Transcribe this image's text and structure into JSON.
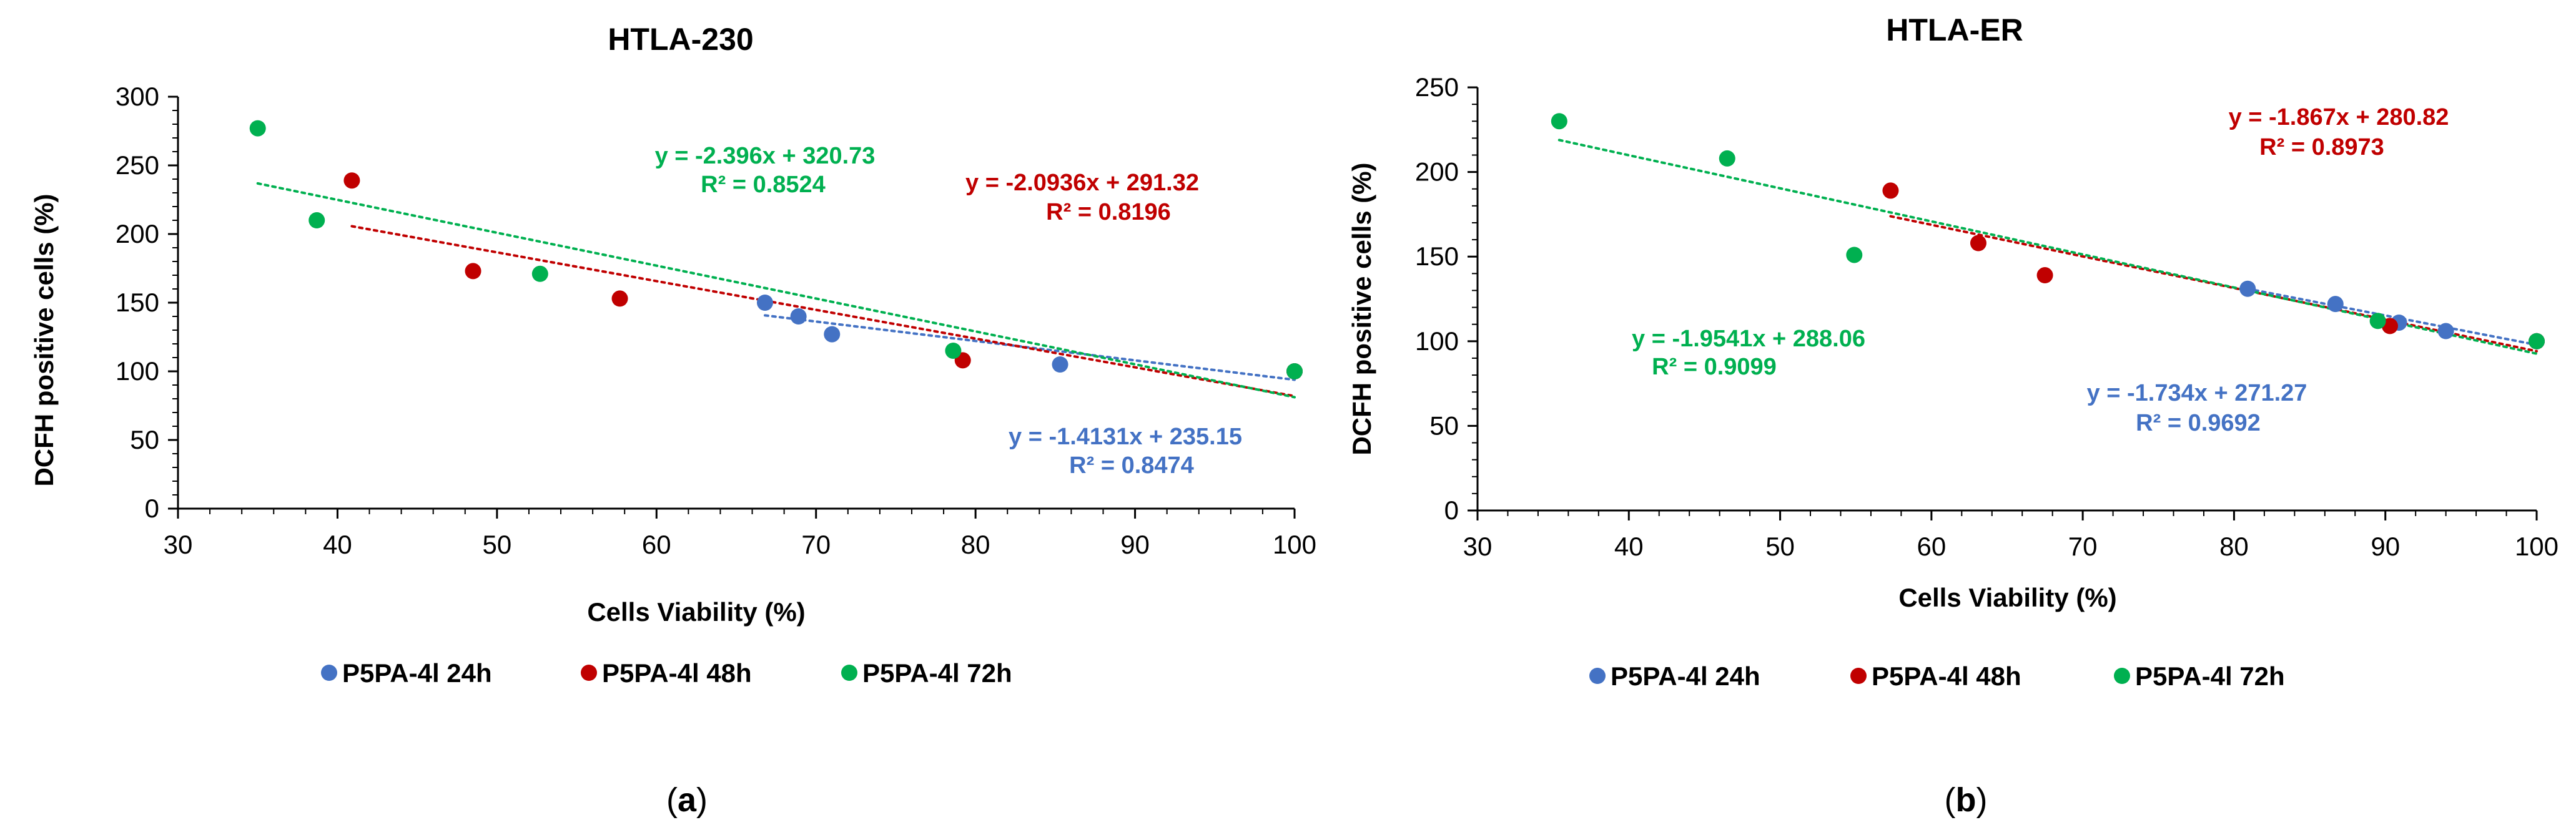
{
  "chart_data": [
    {
      "type": "scatter",
      "title": "HTLA-230",
      "caption_letter": "a",
      "xlabel": "Cells Viability  (%)",
      "ylabel": "DCFH positive cells (%)",
      "xlim": [
        30,
        100
      ],
      "ylim": [
        0,
        300
      ],
      "xticks": [
        "30",
        "40",
        "50",
        "60",
        "70",
        "80",
        "90",
        "100"
      ],
      "yticks": [
        "0",
        "50",
        "100",
        "150",
        "200",
        "250",
        "300"
      ],
      "series": [
        {
          "name": "P5PA-4l 24h",
          "color": "#4472C4",
          "points": [
            [
              66.8,
              150
            ],
            [
              68.9,
              140
            ],
            [
              71.0,
              127
            ],
            [
              85.3,
              105
            ],
            [
              100,
              100
            ]
          ],
          "trend": {
            "slope": -1.4131,
            "intercept": 235.15,
            "x": [
              66.8,
              100
            ]
          },
          "equation": "y = -1.4131x + 235.15",
          "r2": "R² = 0.8474"
        },
        {
          "name": "P5PA-4l 48h",
          "color": "#C00000",
          "points": [
            [
              40.9,
              239
            ],
            [
              48.5,
              173
            ],
            [
              57.7,
              153
            ],
            [
              79.2,
              108
            ],
            [
              100,
              100
            ]
          ],
          "trend": {
            "slope": -2.0936,
            "intercept": 291.32,
            "x": [
              40.9,
              100
            ]
          },
          "equation": "y = -2.0936x + 291.32",
          "r2": "R² = 0.8196"
        },
        {
          "name": "P5PA-4l 72h",
          "color": "#00B050",
          "points": [
            [
              35.0,
              277
            ],
            [
              38.7,
              210
            ],
            [
              52.7,
              171
            ],
            [
              78.6,
              115
            ],
            [
              100,
              100
            ]
          ],
          "trend": {
            "slope": -2.396,
            "intercept": 320.73,
            "x": [
              35.0,
              100
            ]
          },
          "equation": "y = -2.396x + 320.73",
          "r2": "R² = 0.8524"
        }
      ]
    },
    {
      "type": "scatter",
      "title": "HTLA-ER",
      "caption_letter": "b",
      "xlabel": "Cells Viability (%)",
      "ylabel": "DCFH positive cells (%)",
      "xlim": [
        30,
        100
      ],
      "ylim": [
        0,
        250
      ],
      "xticks": [
        "30",
        "40",
        "50",
        "60",
        "70",
        "80",
        "90",
        "100"
      ],
      "yticks": [
        "0",
        "50",
        "100",
        "150",
        "200",
        "250"
      ],
      "series": [
        {
          "name": "P5PA-4l 24h",
          "color": "#4472C4",
          "points": [
            [
              80.9,
              131
            ],
            [
              86.7,
              122
            ],
            [
              90.9,
              111
            ],
            [
              94.0,
              106
            ],
            [
              100,
              100
            ]
          ],
          "trend": {
            "slope": -1.734,
            "intercept": 271.27,
            "x": [
              80.9,
              100
            ]
          },
          "equation": "y = -1.734x + 271.27",
          "r2": "R² = 0.9692"
        },
        {
          "name": "P5PA-4l 48h",
          "color": "#C00000",
          "points": [
            [
              57.3,
              189
            ],
            [
              63.1,
              158
            ],
            [
              67.5,
              139
            ],
            [
              90.3,
              109
            ],
            [
              100,
              100
            ]
          ],
          "trend": {
            "slope": -1.867,
            "intercept": 280.82,
            "x": [
              57.3,
              100
            ]
          },
          "equation": "y = -1.867x + 280.82",
          "r2": "R² = 0.8973"
        },
        {
          "name": "P5PA-4l 72h",
          "color": "#00B050",
          "points": [
            [
              35.4,
              230
            ],
            [
              46.5,
              208
            ],
            [
              54.9,
              151
            ],
            [
              89.5,
              112
            ],
            [
              100,
              100
            ]
          ],
          "trend": {
            "slope": -1.9541,
            "intercept": 288.06,
            "x": [
              35.4,
              100
            ]
          },
          "equation": "y = -1.9541x + 288.06",
          "r2": "R² = 0.9099"
        }
      ]
    }
  ]
}
